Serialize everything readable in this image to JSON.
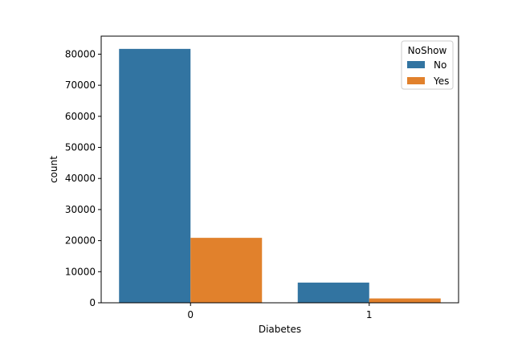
{
  "chart_data": {
    "type": "bar",
    "title": "",
    "xlabel": "Diabetes",
    "ylabel": "count",
    "categories": [
      "0",
      "1"
    ],
    "series": [
      {
        "name": "No",
        "values": [
          81700,
          6500
        ],
        "color": "#3274a1"
      },
      {
        "name": "Yes",
        "values": [
          20900,
          1400
        ],
        "color": "#e1812c"
      }
    ],
    "ylim": [
      0,
      85800
    ],
    "yticks": [
      0,
      10000,
      20000,
      30000,
      40000,
      50000,
      60000,
      70000,
      80000
    ],
    "legend": {
      "title": "NoShow",
      "position": "top-right"
    },
    "grid": false
  }
}
